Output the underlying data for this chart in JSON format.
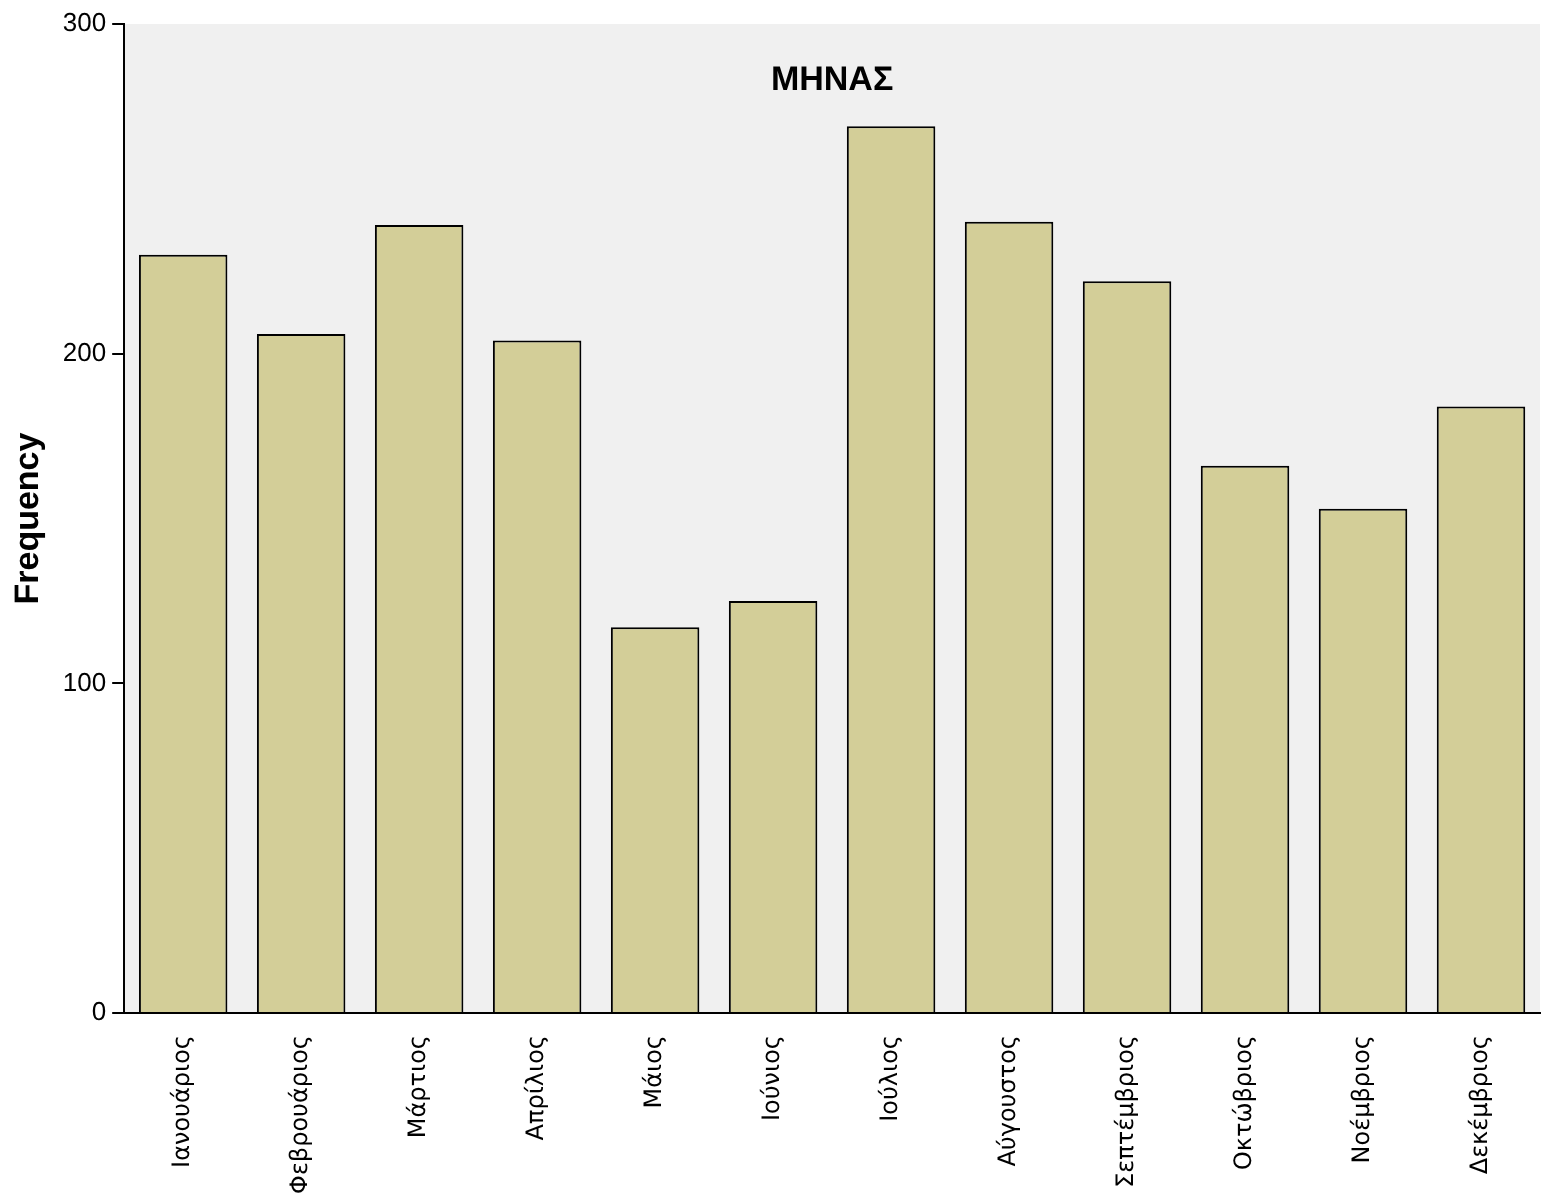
{
  "chart_data": {
    "type": "bar",
    "title": "ΜΗΝΑΣ",
    "ylabel": "Frequency",
    "categories": [
      "Ιανουάριος",
      "Φεβρουάριος",
      "Μάρτιος",
      "Απρίλιος",
      "Μάιος",
      "Ιούνιος",
      "Ιούλιος",
      "Αύγουστος",
      "Σεπτέμβριος",
      "Οκτώβριος",
      "Νοέμβριος",
      "Δεκέμβριος"
    ],
    "values": [
      230,
      206,
      239,
      204,
      117,
      125,
      269,
      240,
      222,
      166,
      153,
      184
    ],
    "color": "#d3ce98",
    "ylim": [
      0,
      300
    ],
    "yticks": [
      0,
      100,
      200,
      300
    ],
    "grid": false,
    "legend": false
  }
}
